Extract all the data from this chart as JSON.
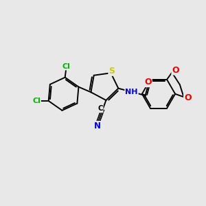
{
  "background_color": "#e8e8e8",
  "atom_colors": {
    "S": "#cccc00",
    "Cl": "#00bb00",
    "N": "#0000ee",
    "O": "#ee0000",
    "C": "#000000",
    "H": "#000000"
  },
  "bond_color": "#000000",
  "bond_width": 1.4,
  "figsize": [
    3.0,
    3.0
  ],
  "dpi": 100,
  "xlim": [
    0,
    10
  ],
  "ylim": [
    0,
    10
  ]
}
